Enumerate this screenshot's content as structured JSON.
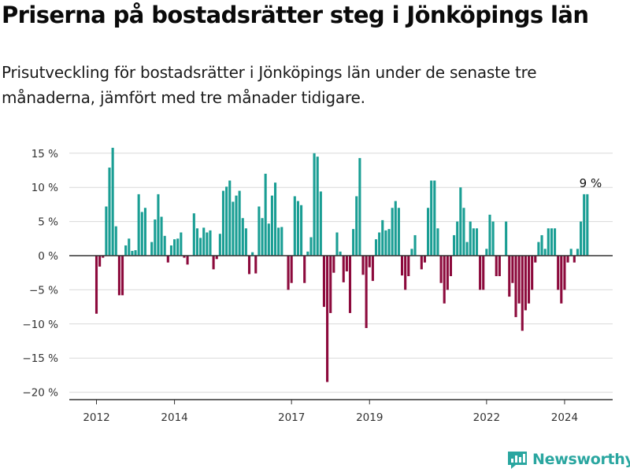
{
  "title": "Priserna på bostadsrätter steg i Jönköpings län",
  "subtitle": "Prisutveckling för bostadsrätter i Jönköpings län under de senaste tre månaderna, jämfört med tre månader tidigare.",
  "brand": {
    "name": "Newsworthy",
    "icon": "newsworthy-logo-icon"
  },
  "colors": {
    "positive": "#1a9e94",
    "negative": "#8c0a3c",
    "grid": "#d9d9d9",
    "zero_line": "#333333"
  },
  "chart_data": {
    "type": "bar",
    "title": "",
    "xlabel": "",
    "ylabel": "",
    "ylim": [
      -21,
      16.5
    ],
    "yticks": [
      15,
      10,
      5,
      0,
      -5,
      -10,
      -15,
      -20
    ],
    "ytick_labels": [
      "15 %",
      "10 %",
      "5 %",
      "0 %",
      "−5 %",
      "−10 %",
      "−15 %",
      "−20 %"
    ],
    "x_start": "2012-01",
    "xticks": [
      "2012",
      "2014",
      "2017",
      "2019",
      "2022",
      "2024"
    ],
    "xtick_months": [
      "2012-01",
      "2014-01",
      "2017-01",
      "2019-01",
      "2022-01",
      "2024-01"
    ],
    "grid": true,
    "annotation": {
      "text": "9 %",
      "month": "2024-09",
      "value": 9
    },
    "values": [
      -8.5,
      -1.6,
      -0.3,
      7.2,
      12.9,
      15.8,
      4.3,
      -5.8,
      -5.8,
      1.5,
      2.5,
      0.7,
      0.8,
      9.0,
      6.4,
      7.0,
      0,
      2.0,
      5.3,
      9.0,
      5.7,
      2.9,
      -1.0,
      1.5,
      2.4,
      2.5,
      3.4,
      -0.3,
      -1.3,
      0,
      6.2,
      4.0,
      2.6,
      4.1,
      3.4,
      3.7,
      -2.0,
      -0.5,
      3.2,
      9.5,
      10.1,
      11.0,
      7.9,
      8.8,
      9.5,
      5.5,
      4.0,
      -2.7,
      0.5,
      -2.6,
      7.2,
      5.5,
      12.0,
      4.7,
      8.8,
      10.7,
      4.1,
      4.2,
      0,
      -5.0,
      -4.0,
      8.7,
      8.0,
      7.4,
      -4.0,
      0.6,
      2.7,
      15.0,
      14.5,
      9.4,
      -7.5,
      -18.5,
      -8.4,
      -2.5,
      3.4,
      0.6,
      -3.9,
      -2.3,
      -8.4,
      3.9,
      8.7,
      14.3,
      -2.8,
      -10.6,
      -1.7,
      -3.7,
      2.4,
      3.4,
      5.2,
      3.7,
      3.9,
      7.0,
      8.0,
      7.0,
      -2.9,
      -5.0,
      -3.0,
      1.0,
      3.0,
      0,
      -2.0,
      -1.0,
      7.0,
      11.0,
      11.0,
      4.0,
      -4.0,
      -7.0,
      -5.0,
      -3.0,
      3.0,
      5.0,
      10.0,
      7.0,
      2.0,
      5.0,
      4.0,
      4.0,
      -5.0,
      -5.0,
      1.0,
      6.0,
      5.0,
      -3.0,
      -3.0,
      0,
      5.0,
      -6.0,
      -4.0,
      -9.0,
      -7.0,
      -11.0,
      -8.0,
      -7.0,
      -5.0,
      -1.0,
      2.0,
      3.0,
      1.0,
      4.0,
      4.0,
      4.0,
      -5.0,
      -7.0,
      -5.0,
      -1.0,
      1.0,
      -1.0,
      1.0,
      5.0,
      9.0,
      9.0
    ]
  }
}
